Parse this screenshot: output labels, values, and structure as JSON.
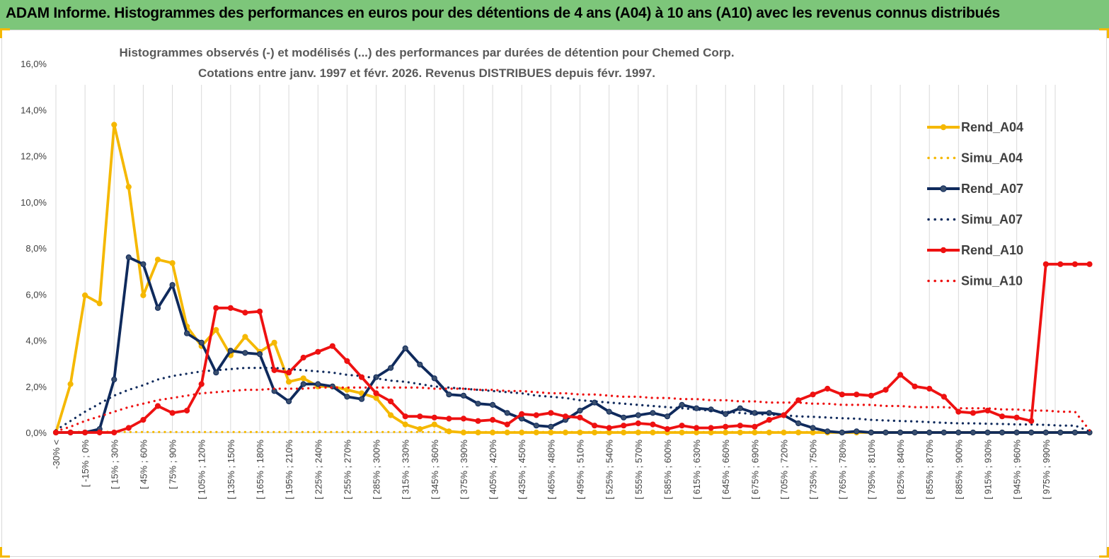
{
  "banner": {
    "title": "ADAM Informe. Histogrammes des performances en euros pour des détentions de 4 ans (A04) à 10 ans (A10) avec les revenus connus distribués",
    "background": "#7dc67a"
  },
  "chart_data": {
    "type": "line",
    "title": "Histogrammes observés (-) et modélisés (...) des performances par durées de détention pour Chemed Corp.",
    "subtitle": "Cotations entre janv. 1997 et févr. 2026. Revenus DISTRIBUES depuis févr. 1997.",
    "y_ticks": [
      "0,0%",
      "2,0%",
      "4,0%",
      "6,0%",
      "8,0%",
      "10,0%",
      "12,0%",
      "14,0%",
      "16,0%"
    ],
    "ylim": [
      0,
      16
    ],
    "grid": "vertical",
    "legend_position": "right",
    "x_labels": [
      "-30% <",
      "[ -15% ; 0%",
      "[ 15% ; 30%",
      "[ 45% ; 60%",
      "[ 75% ; 90%",
      "[ 105% ; 120%",
      "[ 135% ; 150%",
      "[ 165% ; 180%",
      "[ 195% ; 210%",
      "[ 225% ; 240%",
      "[ 255% ; 270%",
      "[ 285% ; 300%",
      "[ 315% ; 330%",
      "[ 345% ; 360%",
      "[ 375% ; 390%",
      "[ 405% ; 420%",
      "[ 435% ; 450%",
      "[ 465% ; 480%",
      "[ 495% ; 510%",
      "[ 525% ; 540%",
      "[ 555% ; 570%",
      "[ 585% ; 600%",
      "[ 615% ; 630%",
      "[ 645% ; 660%",
      "[ 675% ; 690%",
      "[ 705% ; 720%",
      "[ 735% ; 750%",
      "[ 765% ; 780%",
      "[ 795% ; 810%",
      "[ 825% ; 840%",
      "[ 855% ; 870%",
      "[ 885% ; 900%",
      "[ 915% ; 930%",
      "[ 945% ; 960%",
      "[ 975% ; 990%"
    ],
    "series": [
      {
        "name": "Rend_A04",
        "color": "#f5b800",
        "style": "solid",
        "values": [
          0,
          2.1,
          5.95,
          5.6,
          13.35,
          10.65,
          5.95,
          7.5,
          7.35,
          4.6,
          3.75,
          4.45,
          3.35,
          4.15,
          3.5,
          3.9,
          2.2,
          2.35,
          2.0,
          2.0,
          1.85,
          1.7,
          1.5,
          0.75,
          0.35,
          0.15,
          0.35,
          0.05,
          0,
          0,
          0,
          0,
          0,
          0,
          0,
          0,
          0,
          0,
          0,
          0,
          0,
          0,
          0,
          0,
          0,
          0,
          0,
          0,
          0,
          0,
          0,
          0,
          0,
          0,
          0,
          0,
          0,
          0,
          0,
          0,
          0,
          0,
          0,
          0,
          0,
          0,
          0,
          0,
          0,
          0,
          0,
          0
        ]
      },
      {
        "name": "Simu_A04",
        "color": "#f5b800",
        "style": "dotted",
        "values": [
          0,
          0.02,
          0.03,
          0.03,
          0.03,
          0.02,
          0.02,
          0.02,
          0.02,
          0.02,
          0.02,
          0.02,
          0.02,
          0.02,
          0.02,
          0.02,
          0.02,
          0.02,
          0.02,
          0.02,
          0.02,
          0.02,
          0.02,
          0.02,
          0.02,
          0.02,
          0.02,
          0.02,
          0.02,
          0.02,
          0.02,
          0.02,
          0.02,
          0.02,
          0.02,
          0.02,
          0.02,
          0.02,
          0.02,
          0.02,
          0.02,
          0.02,
          0.02,
          0.02,
          0.02,
          0.02,
          0.02,
          0.02,
          0.02,
          0.02,
          0.02,
          0.02,
          0.02,
          0.02,
          0.02,
          0.01,
          0.01,
          0.01,
          0.01,
          0.01,
          0.01,
          0.01,
          0.01,
          0.01,
          0.01,
          0.01,
          0.01,
          0.01,
          0.01,
          0.01,
          0.01,
          0
        ]
      },
      {
        "name": "Rend_A07",
        "color": "#0f2a5c",
        "style": "solid",
        "values": [
          0,
          0,
          0,
          0.15,
          2.3,
          7.6,
          7.3,
          5.4,
          6.4,
          4.3,
          3.9,
          2.6,
          3.55,
          3.45,
          3.4,
          1.8,
          1.35,
          2.1,
          2.1,
          2.0,
          1.55,
          1.45,
          2.4,
          2.8,
          3.65,
          2.95,
          2.35,
          1.65,
          1.6,
          1.25,
          1.2,
          0.85,
          0.6,
          0.3,
          0.25,
          0.55,
          0.95,
          1.3,
          0.9,
          0.65,
          0.75,
          0.85,
          0.7,
          1.2,
          1.05,
          1.0,
          0.8,
          1.05,
          0.85,
          0.85,
          0.75,
          0.4,
          0.2,
          0.05,
          0,
          0.05,
          0,
          0,
          0,
          0,
          0,
          0,
          0,
          0,
          0,
          0,
          0,
          0,
          0,
          0,
          0,
          0
        ]
      },
      {
        "name": "Simu_A07",
        "color": "#0f2a5c",
        "style": "dotted",
        "values": [
          0.1,
          0.5,
          0.9,
          1.25,
          1.6,
          1.85,
          2.05,
          2.3,
          2.45,
          2.55,
          2.65,
          2.7,
          2.75,
          2.8,
          2.8,
          2.8,
          2.75,
          2.7,
          2.65,
          2.6,
          2.5,
          2.45,
          2.35,
          2.25,
          2.2,
          2.1,
          2.0,
          1.95,
          1.9,
          1.85,
          1.8,
          1.75,
          1.7,
          1.6,
          1.55,
          1.5,
          1.4,
          1.35,
          1.3,
          1.25,
          1.2,
          1.15,
          1.1,
          1.05,
          1.0,
          0.95,
          0.9,
          0.85,
          0.8,
          0.78,
          0.75,
          0.7,
          0.68,
          0.65,
          0.62,
          0.6,
          0.55,
          0.52,
          0.5,
          0.48,
          0.45,
          0.42,
          0.4,
          0.4,
          0.38,
          0.37,
          0.35,
          0.35,
          0.33,
          0.3,
          0.3,
          0.05
        ]
      },
      {
        "name": "Rend_A10",
        "color": "#ee1111",
        "style": "solid",
        "values": [
          0,
          0,
          0,
          0,
          0,
          0.2,
          0.55,
          1.15,
          0.85,
          0.95,
          2.1,
          5.4,
          5.4,
          5.2,
          5.25,
          2.7,
          2.6,
          3.25,
          3.5,
          3.75,
          3.1,
          2.4,
          1.7,
          1.35,
          0.7,
          0.7,
          0.65,
          0.6,
          0.6,
          0.5,
          0.55,
          0.35,
          0.8,
          0.75,
          0.85,
          0.7,
          0.65,
          0.3,
          0.2,
          0.3,
          0.4,
          0.35,
          0.15,
          0.3,
          0.2,
          0.2,
          0.25,
          0.3,
          0.25,
          0.55,
          0.75,
          1.4,
          1.65,
          1.9,
          1.65,
          1.65,
          1.6,
          1.85,
          2.5,
          2.0,
          1.9,
          1.55,
          0.9,
          0.85,
          0.95,
          0.7,
          0.65,
          0.5,
          7.3,
          7.3,
          7.3,
          7.3
        ]
      },
      {
        "name": "Simu_A10",
        "color": "#ee1111",
        "style": "dotted",
        "values": [
          0.05,
          0.25,
          0.5,
          0.7,
          0.9,
          1.1,
          1.25,
          1.4,
          1.5,
          1.6,
          1.7,
          1.75,
          1.8,
          1.85,
          1.85,
          1.9,
          1.9,
          1.9,
          1.95,
          1.95,
          1.95,
          1.95,
          1.95,
          1.95,
          1.95,
          1.95,
          1.9,
          1.9,
          1.9,
          1.85,
          1.85,
          1.8,
          1.8,
          1.75,
          1.7,
          1.7,
          1.65,
          1.65,
          1.6,
          1.55,
          1.55,
          1.5,
          1.5,
          1.45,
          1.45,
          1.4,
          1.4,
          1.35,
          1.35,
          1.3,
          1.3,
          1.3,
          1.25,
          1.25,
          1.2,
          1.2,
          1.2,
          1.15,
          1.15,
          1.1,
          1.1,
          1.1,
          1.05,
          1.05,
          1.05,
          1.0,
          1.0,
          0.95,
          0.95,
          0.9,
          0.9,
          0.1
        ]
      }
    ]
  }
}
